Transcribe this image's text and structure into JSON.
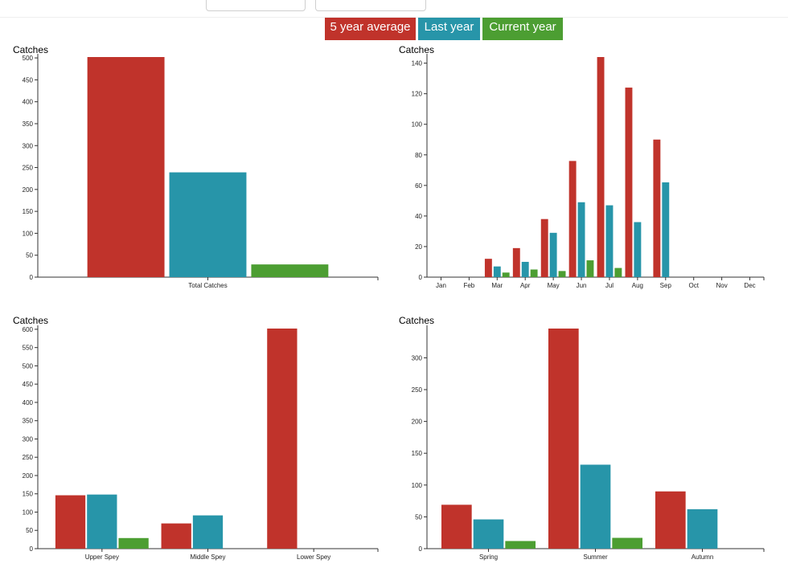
{
  "colors": {
    "avg": "#c0332b",
    "last": "#2795a9",
    "current": "#4c9e32"
  },
  "legend": {
    "avg_label": "5 year average",
    "last_label": "Last year",
    "current_label": "Current year"
  },
  "chart_data": [
    {
      "type": "bar",
      "ylabel": "Catches",
      "categories": [
        "Total Catches"
      ],
      "series": [
        {
          "name": "5 year average",
          "values": [
            502
          ]
        },
        {
          "name": "Last year",
          "values": [
            239
          ]
        },
        {
          "name": "Current year",
          "values": [
            29
          ]
        }
      ],
      "ylim": [
        0,
        502
      ],
      "yticks": [
        0,
        50,
        100,
        150,
        200,
        250,
        300,
        350,
        400,
        450,
        500
      ]
    },
    {
      "type": "bar",
      "ylabel": "Catches",
      "categories": [
        "Jan",
        "Feb",
        "Mar",
        "Apr",
        "May",
        "Jun",
        "Jul",
        "Aug",
        "Sep",
        "Oct",
        "Nov",
        "Dec"
      ],
      "series": [
        {
          "name": "5 year average",
          "values": [
            0,
            0,
            12,
            19,
            38,
            76,
            144,
            124,
            90,
            0,
            0,
            0
          ]
        },
        {
          "name": "Last year",
          "values": [
            0,
            0,
            7,
            10,
            29,
            49,
            47,
            36,
            62,
            0,
            0,
            0
          ]
        },
        {
          "name": "Current year",
          "values": [
            0,
            0,
            3,
            5,
            4,
            11,
            6,
            0,
            0,
            0,
            0,
            0
          ]
        }
      ],
      "ylim": [
        0,
        144
      ],
      "yticks": [
        0,
        20,
        40,
        60,
        80,
        100,
        120,
        140
      ]
    },
    {
      "type": "bar",
      "ylabel": "Catches",
      "categories": [
        "Upper Spey",
        "Middle Spey",
        "Lower Spey"
      ],
      "series": [
        {
          "name": "5 year average",
          "values": [
            146,
            69,
            602
          ]
        },
        {
          "name": "Last year",
          "values": [
            148,
            91,
            0
          ]
        },
        {
          "name": "Current year",
          "values": [
            29,
            0,
            0
          ]
        }
      ],
      "ylim": [
        0,
        602
      ],
      "yticks": [
        0,
        50,
        100,
        150,
        200,
        250,
        300,
        350,
        400,
        450,
        500,
        550,
        600
      ]
    },
    {
      "type": "bar",
      "ylabel": "Catches",
      "categories": [
        "Spring",
        "Summer",
        "Autumn"
      ],
      "series": [
        {
          "name": "5 year average",
          "values": [
            69,
            346,
            90
          ]
        },
        {
          "name": "Last year",
          "values": [
            46,
            132,
            62
          ]
        },
        {
          "name": "Current year",
          "values": [
            12,
            17,
            0
          ]
        }
      ],
      "ylim": [
        0,
        346
      ],
      "yticks": [
        0,
        50,
        100,
        150,
        200,
        250,
        300
      ]
    }
  ]
}
